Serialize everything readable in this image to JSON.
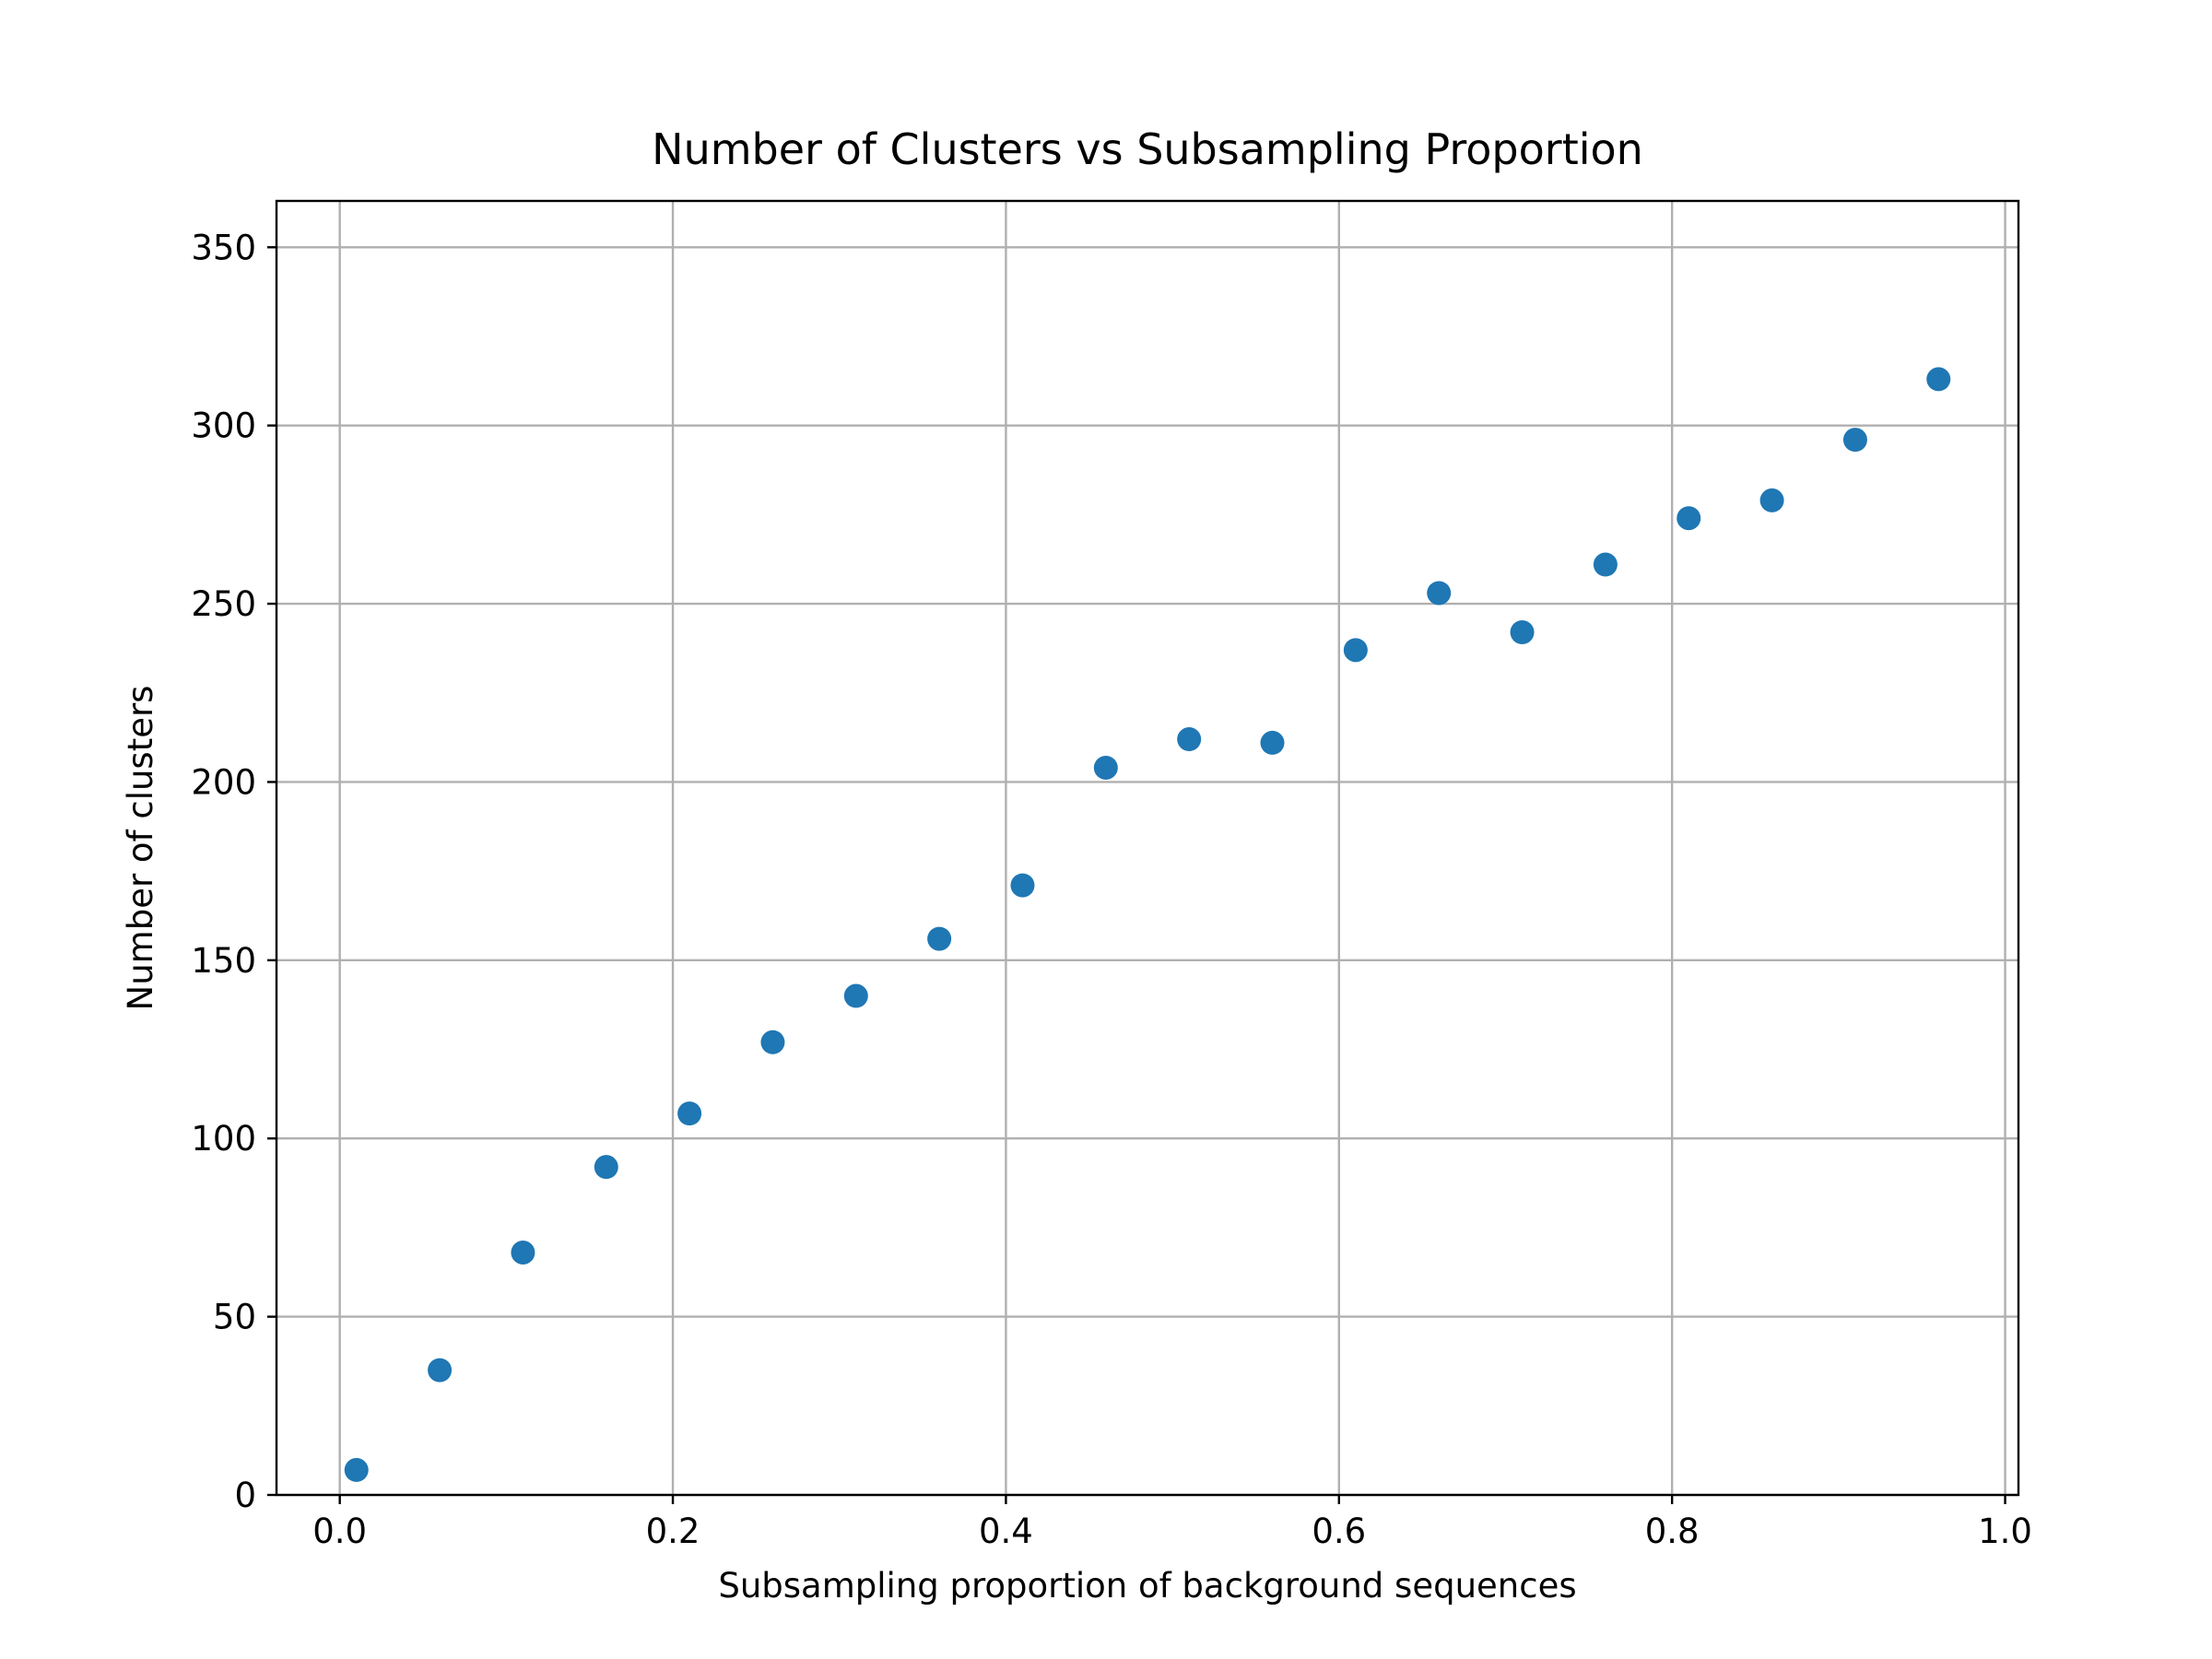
{
  "chart_data": {
    "type": "scatter",
    "title": "Number of Clusters vs Subsampling Proportion",
    "xlabel": "Subsampling proportion of background sequences",
    "ylabel": "Number of clusters",
    "xlim": [
      -0.038,
      1.008
    ],
    "ylim": [
      0,
      363
    ],
    "xticks": [
      0.0,
      0.2,
      0.4,
      0.6,
      0.8,
      1.0
    ],
    "xtick_labels": [
      "0.0",
      "0.2",
      "0.4",
      "0.6",
      "0.8",
      "1.0"
    ],
    "yticks": [
      0,
      50,
      100,
      150,
      200,
      250,
      300,
      350
    ],
    "ytick_labels": [
      "0",
      "50",
      "100",
      "150",
      "200",
      "250",
      "300",
      "350"
    ],
    "grid": true,
    "marker_color": "#1f77b4",
    "series": [
      {
        "x": [
          0.01,
          0.06,
          0.11,
          0.16,
          0.21,
          0.26,
          0.31,
          0.36,
          0.41,
          0.46,
          0.51,
          0.56,
          0.61,
          0.66,
          0.71,
          0.76,
          0.81,
          0.86,
          0.91,
          0.96
        ],
        "y": [
          7,
          35,
          68,
          92,
          107,
          127,
          140,
          156,
          171,
          204,
          212,
          211,
          237,
          253,
          242,
          261,
          274,
          279,
          296,
          313
        ]
      }
    ]
  }
}
